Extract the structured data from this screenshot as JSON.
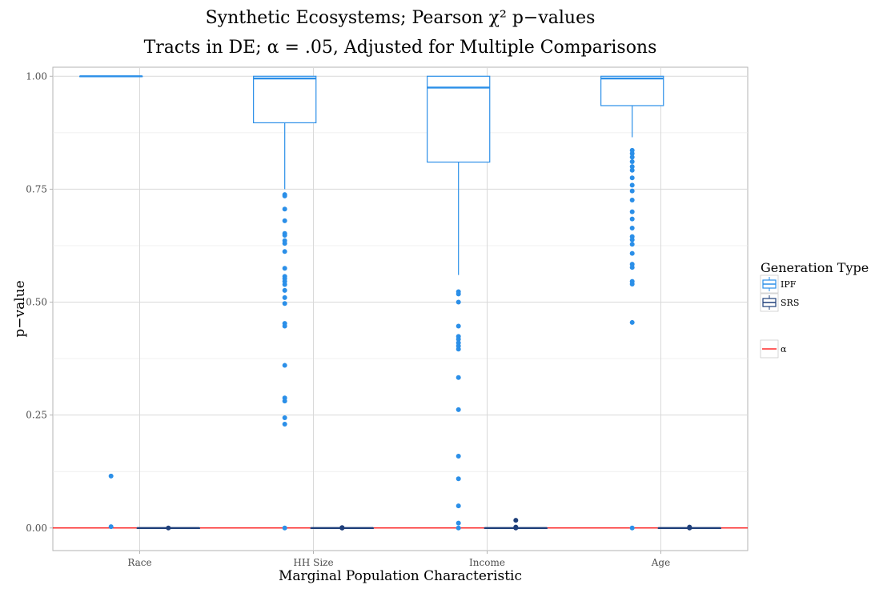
{
  "chart_data": {
    "type": "boxplot",
    "title": "Synthetic Ecosystems; Pearson χ² p−values",
    "subtitle": "Tracts in DE; α = .05, Adjusted for Multiple Comparisons",
    "xlabel": "Marginal Population Characteristic",
    "ylabel": "p−value",
    "categories": [
      "Race",
      "HH Size",
      "Income",
      "Age"
    ],
    "ylim": [
      -0.05,
      1.02
    ],
    "yticks": [
      0.0,
      0.25,
      0.5,
      0.75,
      1.0
    ],
    "ytick_labels": [
      "0.00",
      "0.25",
      "0.50",
      "0.75",
      "1.00"
    ],
    "grid": true,
    "legend_title": "Generation Type",
    "legend_position": "right",
    "alpha_line": {
      "label": "α",
      "value": 0.0,
      "color": "#ff0000"
    },
    "series": [
      {
        "name": "IPF",
        "color": "#2b8fe8",
        "boxes": [
          {
            "category": "Race",
            "q1": 1.0,
            "median": 1.0,
            "q3": 1.0,
            "whisker_low": 1.0,
            "whisker_high": 1.0,
            "outliers": [
              0.115,
              0.003
            ]
          },
          {
            "category": "HH Size",
            "q1": 0.897,
            "median": 0.995,
            "q3": 1.0,
            "whisker_low": 0.75,
            "whisker_high": 1.0,
            "outliers": [
              0.738,
              0.735,
              0.706,
              0.68,
              0.652,
              0.648,
              0.636,
              0.63,
              0.612,
              0.575,
              0.557,
              0.552,
              0.546,
              0.539,
              0.526,
              0.51,
              0.497,
              0.453,
              0.447,
              0.36,
              0.288,
              0.281,
              0.244,
              0.23,
              0.0
            ]
          },
          {
            "category": "Income",
            "q1": 0.81,
            "median": 0.975,
            "q3": 1.0,
            "whisker_low": 0.56,
            "whisker_high": 1.0,
            "outliers": [
              0.523,
              0.518,
              0.5,
              0.447,
              0.424,
              0.418,
              0.41,
              0.403,
              0.396,
              0.333,
              0.262,
              0.159,
              0.109,
              0.049,
              0.011,
              0.0
            ]
          },
          {
            "category": "Age",
            "q1": 0.935,
            "median": 0.995,
            "q3": 1.0,
            "whisker_low": 0.865,
            "whisker_high": 1.0,
            "outliers": [
              0.836,
              0.829,
              0.821,
              0.811,
              0.8,
              0.792,
              0.775,
              0.759,
              0.746,
              0.726,
              0.7,
              0.684,
              0.664,
              0.645,
              0.638,
              0.628,
              0.608,
              0.584,
              0.577,
              0.546,
              0.54,
              0.455,
              0.0
            ]
          }
        ]
      },
      {
        "name": "SRS",
        "color": "#1f3f7a",
        "boxes": [
          {
            "category": "Race",
            "q1": 0.0,
            "median": 0.0,
            "q3": 0.0,
            "whisker_low": 0.0,
            "whisker_high": 0.0,
            "outliers": [
              0.0
            ]
          },
          {
            "category": "HH Size",
            "q1": 0.0,
            "median": 0.0,
            "q3": 0.0,
            "whisker_low": 0.0,
            "whisker_high": 0.0,
            "outliers": [
              0.0,
              0.001,
              0.0
            ]
          },
          {
            "category": "Income",
            "q1": 0.0,
            "median": 0.0,
            "q3": 0.0,
            "whisker_low": 0.0,
            "whisker_high": 0.0,
            "outliers": [
              0.017,
              0.0,
              0.002
            ]
          },
          {
            "category": "Age",
            "q1": 0.0,
            "median": 0.0,
            "q3": 0.0,
            "whisker_low": 0.0,
            "whisker_high": 0.0,
            "outliers": [
              0.0,
              0.002
            ]
          }
        ]
      }
    ]
  }
}
